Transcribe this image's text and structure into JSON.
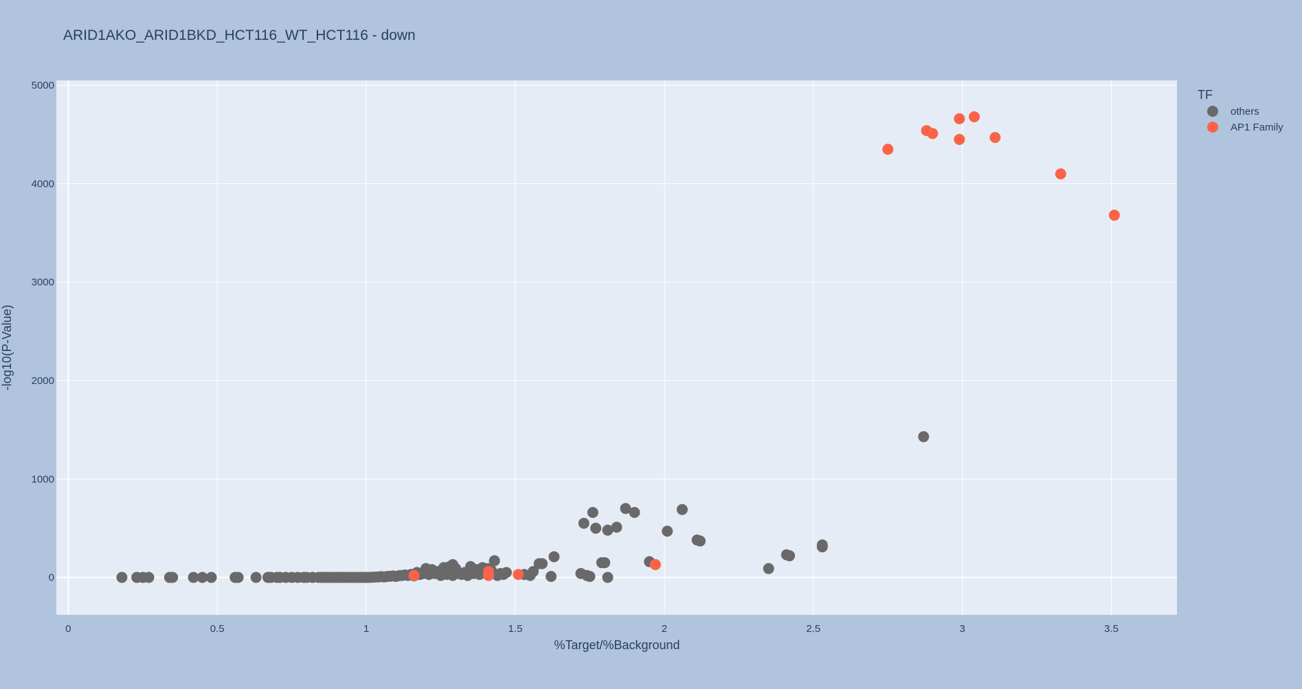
{
  "chart_data": {
    "type": "scatter",
    "title": "ARID1AKO_ARID1BKD_HCT116_WT_HCT116 - down",
    "xlabel": "%Target/%Background",
    "ylabel": "-log10(P-Value)",
    "xlim": [
      -0.04,
      3.72
    ],
    "ylim": [
      -380,
      5050
    ],
    "xticks": [
      {
        "v": 0,
        "label": "0"
      },
      {
        "v": 0.5,
        "label": "0.5"
      },
      {
        "v": 1,
        "label": "1"
      },
      {
        "v": 1.5,
        "label": "1.5"
      },
      {
        "v": 2,
        "label": "2"
      },
      {
        "v": 2.5,
        "label": "2.5"
      },
      {
        "v": 3,
        "label": "3"
      },
      {
        "v": 3.5,
        "label": "3.5"
      }
    ],
    "yticks": [
      {
        "v": 0,
        "label": "0"
      },
      {
        "v": 1000,
        "label": "1000"
      },
      {
        "v": 2000,
        "label": "2000"
      },
      {
        "v": 3000,
        "label": "3000"
      },
      {
        "v": 4000,
        "label": "4000"
      },
      {
        "v": 5000,
        "label": "5000"
      }
    ],
    "grid": true,
    "legend": {
      "title": "TF",
      "position": "top-right"
    },
    "series": [
      {
        "name": "others",
        "color": "#696969",
        "points": [
          [
            0.18,
            0
          ],
          [
            0.23,
            0
          ],
          [
            0.25,
            0
          ],
          [
            0.27,
            0
          ],
          [
            0.34,
            0
          ],
          [
            0.35,
            0
          ],
          [
            0.42,
            0
          ],
          [
            0.45,
            0
          ],
          [
            0.48,
            0
          ],
          [
            0.56,
            0
          ],
          [
            0.57,
            0
          ],
          [
            0.63,
            0
          ],
          [
            0.67,
            0
          ],
          [
            0.68,
            0
          ],
          [
            0.7,
            0
          ],
          [
            0.71,
            0
          ],
          [
            0.73,
            0
          ],
          [
            0.75,
            0
          ],
          [
            0.77,
            0
          ],
          [
            0.79,
            0
          ],
          [
            0.8,
            0
          ],
          [
            0.82,
            0
          ],
          [
            0.84,
            0
          ],
          [
            0.85,
            0
          ],
          [
            0.86,
            0
          ],
          [
            0.87,
            0
          ],
          [
            0.88,
            0
          ],
          [
            0.89,
            0
          ],
          [
            0.9,
            0
          ],
          [
            0.91,
            0
          ],
          [
            0.92,
            0
          ],
          [
            0.93,
            0
          ],
          [
            0.94,
            0
          ],
          [
            0.95,
            0
          ],
          [
            0.96,
            0
          ],
          [
            0.97,
            0
          ],
          [
            0.98,
            0
          ],
          [
            0.99,
            0
          ],
          [
            1.0,
            0
          ],
          [
            1.01,
            0
          ],
          [
            1.02,
            2
          ],
          [
            1.03,
            3
          ],
          [
            1.04,
            5
          ],
          [
            1.05,
            8
          ],
          [
            1.06,
            5
          ],
          [
            1.07,
            10
          ],
          [
            1.08,
            12
          ],
          [
            1.09,
            15
          ],
          [
            1.1,
            10
          ],
          [
            1.11,
            18
          ],
          [
            1.12,
            20
          ],
          [
            1.13,
            25
          ],
          [
            1.14,
            20
          ],
          [
            1.15,
            30
          ],
          [
            1.16,
            15
          ],
          [
            1.17,
            50
          ],
          [
            1.18,
            30
          ],
          [
            1.19,
            40
          ],
          [
            1.2,
            60
          ],
          [
            1.2,
            90
          ],
          [
            1.21,
            30
          ],
          [
            1.22,
            50
          ],
          [
            1.22,
            80
          ],
          [
            1.23,
            40
          ],
          [
            1.24,
            60
          ],
          [
            1.25,
            20
          ],
          [
            1.26,
            100
          ],
          [
            1.27,
            70
          ],
          [
            1.27,
            30
          ],
          [
            1.28,
            110
          ],
          [
            1.29,
            130
          ],
          [
            1.29,
            20
          ],
          [
            1.3,
            60
          ],
          [
            1.3,
            90
          ],
          [
            1.31,
            40
          ],
          [
            1.32,
            30
          ],
          [
            1.33,
            50
          ],
          [
            1.34,
            20
          ],
          [
            1.35,
            110
          ],
          [
            1.36,
            40
          ],
          [
            1.37,
            80
          ],
          [
            1.38,
            30
          ],
          [
            1.39,
            100
          ],
          [
            1.4,
            50
          ],
          [
            1.41,
            90
          ],
          [
            1.42,
            70
          ],
          [
            1.43,
            170
          ],
          [
            1.44,
            20
          ],
          [
            1.45,
            40
          ],
          [
            1.46,
            30
          ],
          [
            1.47,
            50
          ],
          [
            1.53,
            30
          ],
          [
            1.55,
            20
          ],
          [
            1.56,
            60
          ],
          [
            1.58,
            140
          ],
          [
            1.59,
            140
          ],
          [
            1.62,
            10
          ],
          [
            1.63,
            210
          ],
          [
            1.72,
            40
          ],
          [
            1.73,
            550
          ],
          [
            1.74,
            20
          ],
          [
            1.75,
            10
          ],
          [
            1.76,
            660
          ],
          [
            1.77,
            500
          ],
          [
            1.79,
            150
          ],
          [
            1.8,
            150
          ],
          [
            1.81,
            480
          ],
          [
            1.81,
            0
          ],
          [
            1.84,
            510
          ],
          [
            1.87,
            700
          ],
          [
            1.9,
            660
          ],
          [
            1.95,
            160
          ],
          [
            2.01,
            470
          ],
          [
            2.06,
            690
          ],
          [
            2.11,
            380
          ],
          [
            2.12,
            370
          ],
          [
            2.35,
            90
          ],
          [
            2.41,
            230
          ],
          [
            2.42,
            220
          ],
          [
            2.53,
            310
          ],
          [
            2.53,
            330
          ],
          [
            2.87,
            1430
          ]
        ]
      },
      {
        "name": "AP1 Family",
        "color": "#fa6348",
        "points": [
          [
            1.16,
            20
          ],
          [
            1.41,
            60
          ],
          [
            1.41,
            20
          ],
          [
            1.51,
            30
          ],
          [
            1.97,
            130
          ],
          [
            2.75,
            4350
          ],
          [
            2.88,
            4540
          ],
          [
            2.9,
            4510
          ],
          [
            2.99,
            4450
          ],
          [
            2.99,
            4660
          ],
          [
            3.04,
            4680
          ],
          [
            3.11,
            4470
          ],
          [
            3.33,
            4100
          ],
          [
            3.51,
            3680
          ]
        ]
      }
    ]
  }
}
